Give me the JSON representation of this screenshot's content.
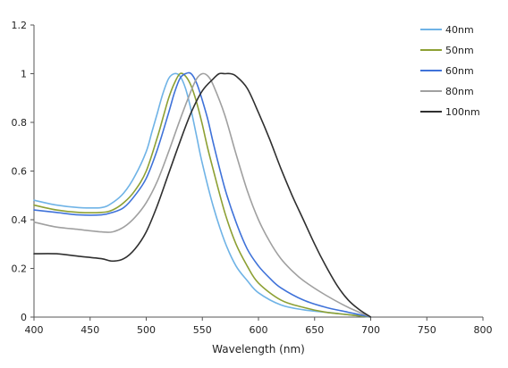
{
  "chart_data": {
    "type": "line",
    "title": "",
    "xlabel": "Wavelength (nm)",
    "ylabel": "",
    "xlim": [
      400,
      800
    ],
    "ylim": [
      0,
      1.2
    ],
    "x_ticks": [
      400,
      450,
      500,
      550,
      600,
      650,
      700,
      750,
      800
    ],
    "y_ticks": [
      0,
      0.2,
      0.4,
      0.6,
      0.8,
      1,
      1.2
    ],
    "grid": false,
    "legend_position": "top-right",
    "series": [
      {
        "name": "40nm",
        "color": "#6fb3e6",
        "x": [
          400,
          420,
          440,
          460,
          470,
          480,
          490,
          500,
          505,
          510,
          515,
          520,
          525,
          530,
          535,
          540,
          545,
          550,
          560,
          570,
          580,
          590,
          600,
          620,
          640,
          660,
          680,
          700
        ],
        "y": [
          0.48,
          0.46,
          0.45,
          0.45,
          0.47,
          0.51,
          0.58,
          0.68,
          0.76,
          0.84,
          0.92,
          0.98,
          1.0,
          0.99,
          0.94,
          0.85,
          0.74,
          0.63,
          0.45,
          0.31,
          0.21,
          0.15,
          0.1,
          0.05,
          0.03,
          0.02,
          0.01,
          0.0
        ]
      },
      {
        "name": "50nm",
        "color": "#8da033",
        "x": [
          400,
          420,
          440,
          460,
          470,
          480,
          490,
          500,
          510,
          515,
          520,
          525,
          530,
          535,
          540,
          545,
          550,
          555,
          560,
          570,
          580,
          590,
          600,
          620,
          640,
          660,
          680,
          700
        ],
        "y": [
          0.46,
          0.44,
          0.43,
          0.43,
          0.44,
          0.47,
          0.52,
          0.6,
          0.74,
          0.82,
          0.9,
          0.96,
          1.0,
          0.99,
          0.95,
          0.88,
          0.79,
          0.69,
          0.6,
          0.43,
          0.3,
          0.21,
          0.14,
          0.07,
          0.04,
          0.02,
          0.01,
          0.0
        ]
      },
      {
        "name": "60nm",
        "color": "#3f72d9",
        "x": [
          400,
          420,
          440,
          460,
          470,
          480,
          490,
          500,
          510,
          520,
          525,
          530,
          535,
          540,
          545,
          550,
          555,
          560,
          570,
          580,
          590,
          600,
          610,
          620,
          640,
          660,
          680,
          700
        ],
        "y": [
          0.44,
          0.43,
          0.42,
          0.42,
          0.43,
          0.45,
          0.5,
          0.57,
          0.69,
          0.84,
          0.92,
          0.98,
          1.0,
          1.0,
          0.96,
          0.89,
          0.81,
          0.71,
          0.53,
          0.39,
          0.28,
          0.21,
          0.16,
          0.12,
          0.07,
          0.04,
          0.02,
          0.0
        ]
      },
      {
        "name": "80nm",
        "color": "#a0a0a0",
        "x": [
          400,
          420,
          440,
          460,
          470,
          480,
          490,
          500,
          510,
          520,
          530,
          540,
          545,
          550,
          555,
          560,
          570,
          580,
          590,
          600,
          610,
          620,
          630,
          640,
          660,
          680,
          700
        ],
        "y": [
          0.39,
          0.37,
          0.36,
          0.35,
          0.35,
          0.37,
          0.41,
          0.47,
          0.56,
          0.68,
          0.81,
          0.93,
          0.98,
          1.0,
          0.99,
          0.95,
          0.83,
          0.67,
          0.52,
          0.4,
          0.31,
          0.24,
          0.19,
          0.15,
          0.09,
          0.04,
          0.0
        ]
      },
      {
        "name": "100nm",
        "color": "#2f2f2f",
        "x": [
          400,
          420,
          440,
          460,
          470,
          480,
          490,
          500,
          510,
          520,
          530,
          540,
          550,
          560,
          565,
          570,
          575,
          580,
          590,
          600,
          610,
          620,
          630,
          640,
          650,
          660,
          670,
          680,
          690,
          700
        ],
        "y": [
          0.26,
          0.26,
          0.25,
          0.24,
          0.23,
          0.24,
          0.28,
          0.35,
          0.46,
          0.59,
          0.72,
          0.84,
          0.93,
          0.98,
          1.0,
          1.0,
          1.0,
          0.99,
          0.94,
          0.84,
          0.73,
          0.61,
          0.5,
          0.4,
          0.3,
          0.21,
          0.13,
          0.07,
          0.03,
          0.0
        ]
      }
    ]
  }
}
